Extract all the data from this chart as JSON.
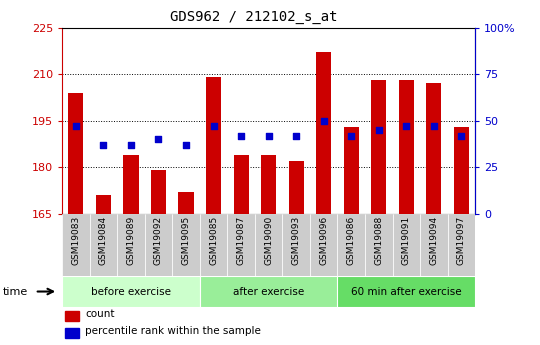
{
  "title": "GDS962 / 212102_s_at",
  "samples": [
    "GSM19083",
    "GSM19084",
    "GSM19089",
    "GSM19092",
    "GSM19095",
    "GSM19085",
    "GSM19087",
    "GSM19090",
    "GSM19093",
    "GSM19096",
    "GSM19086",
    "GSM19088",
    "GSM19091",
    "GSM19094",
    "GSM19097"
  ],
  "counts": [
    204,
    171,
    184,
    179,
    172,
    209,
    184,
    184,
    182,
    217,
    193,
    208,
    208,
    207,
    193
  ],
  "percentile_ranks": [
    47,
    37,
    37,
    40,
    37,
    47,
    42,
    42,
    42,
    50,
    42,
    45,
    47,
    47,
    42
  ],
  "ymin": 165,
  "ymax": 225,
  "yticks": [
    165,
    180,
    195,
    210,
    225
  ],
  "y2ticks": [
    0,
    25,
    50,
    75,
    100
  ],
  "y2labels": [
    "0",
    "25",
    "50",
    "75",
    "100%"
  ],
  "bar_color": "#cc0000",
  "dot_color": "#0000cc",
  "groups": [
    {
      "label": "before exercise",
      "start": 0,
      "end": 5,
      "color": "#ccffcc"
    },
    {
      "label": "after exercise",
      "start": 5,
      "end": 10,
      "color": "#99ee99"
    },
    {
      "label": "60 min after exercise",
      "start": 10,
      "end": 15,
      "color": "#66dd66"
    }
  ],
  "xlabel": "time",
  "bar_width": 0.55,
  "tick_area_color": "#cccccc",
  "legend_items": [
    {
      "label": "count",
      "color": "#cc0000"
    },
    {
      "label": "percentile rank within the sample",
      "color": "#0000cc"
    }
  ]
}
